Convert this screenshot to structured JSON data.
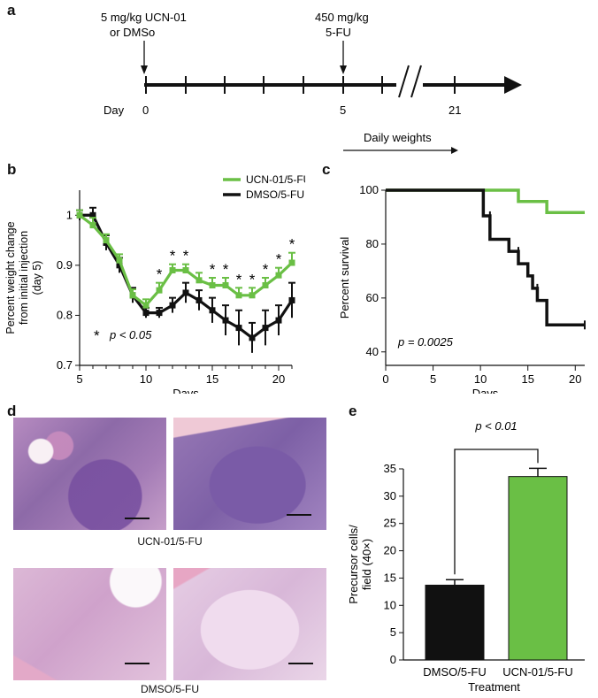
{
  "panel_a": {
    "letter": "a",
    "dose1_line1": "5 mg/kg UCN-01",
    "dose1_line2": "or DMSo",
    "dose2_line1": "450 mg/kg",
    "dose2_line2": "5-FU",
    "day_label": "Day",
    "ticks": [
      "0",
      "5",
      "21"
    ],
    "daily_label": "Daily weights"
  },
  "panel_b": {
    "letter": "b",
    "sig_star": "*",
    "sig_text": "p < 0.05"
  },
  "panel_c": {
    "letter": "c",
    "p_text": "p = 0.0025"
  },
  "panel_d": {
    "letter": "d",
    "label_top": "UCN-01/5-FU",
    "label_bottom": "DMSO/5-FU"
  },
  "panel_e": {
    "letter": "e",
    "p_text": "p < 0.01"
  },
  "colors": {
    "green": "#6abf45",
    "black": "#111111"
  },
  "chart_data": [
    {
      "type": "line",
      "xlabel": "Days",
      "ylabel": "Percent weight change from initial injection (day 5)",
      "xlim": [
        5,
        21
      ],
      "ylim": [
        0.7,
        1.05
      ],
      "xticks": [
        5,
        10,
        15,
        20
      ],
      "yticks": [
        0.7,
        0.8,
        0.9,
        1.0
      ],
      "x": [
        5,
        6,
        7,
        8,
        9,
        10,
        11,
        12,
        13,
        14,
        15,
        16,
        17,
        18,
        19,
        20,
        21
      ],
      "series": [
        {
          "name": "UCN-01/5-FU",
          "color": "#6abf45",
          "values": [
            1.0,
            0.98,
            0.95,
            0.91,
            0.84,
            0.82,
            0.85,
            0.89,
            0.89,
            0.87,
            0.86,
            0.86,
            0.84,
            0.84,
            0.86,
            0.88,
            0.905
          ],
          "errors": [
            0.01,
            0.015,
            0.012,
            0.012,
            0.012,
            0.012,
            0.015,
            0.012,
            0.012,
            0.015,
            0.015,
            0.015,
            0.015,
            0.015,
            0.015,
            0.015,
            0.02
          ]
        },
        {
          "name": "DMSO/5-FU",
          "color": "#111111",
          "values": [
            1.0,
            1.0,
            0.945,
            0.9,
            0.84,
            0.805,
            0.805,
            0.82,
            0.845,
            0.83,
            0.81,
            0.79,
            0.775,
            0.755,
            0.775,
            0.79,
            0.83
          ],
          "errors": [
            0.01,
            0.015,
            0.015,
            0.015,
            0.015,
            0.01,
            0.01,
            0.015,
            0.02,
            0.02,
            0.025,
            0.03,
            0.035,
            0.03,
            0.035,
            0.03,
            0.035
          ]
        }
      ],
      "significant_days": [
        11,
        12,
        13,
        15,
        16,
        17,
        18,
        19,
        20,
        21
      ],
      "legend": "top-right"
    },
    {
      "type": "line",
      "xlabel": "Days",
      "ylabel": "Percent survival",
      "xlim": [
        0,
        21
      ],
      "ylim": [
        35,
        100
      ],
      "xticks": [
        0,
        5,
        10,
        15,
        20
      ],
      "yticks": [
        40,
        60,
        80,
        100
      ],
      "series": [
        {
          "name": "UCN-01/5-FU",
          "color": "#6abf45",
          "steps": [
            [
              0,
              100
            ],
            [
              14,
              100
            ],
            [
              14,
              95.8
            ],
            [
              17,
              95.8
            ],
            [
              17,
              91.7
            ],
            [
              21,
              91.7
            ]
          ]
        },
        {
          "name": "DMSO/5-FU",
          "color": "#111111",
          "steps": [
            [
              0,
              100
            ],
            [
              10.3,
              100
            ],
            [
              10.3,
              90.5
            ],
            [
              11,
              90.5
            ],
            [
              11,
              81.8
            ],
            [
              13,
              81.8
            ],
            [
              13,
              77.3
            ],
            [
              14,
              77.3
            ],
            [
              14,
              72.7
            ],
            [
              15,
              72.7
            ],
            [
              15,
              68.2
            ],
            [
              15.5,
              68.2
            ],
            [
              15.5,
              63.6
            ],
            [
              16,
              63.6
            ],
            [
              16,
              59.1
            ],
            [
              17,
              59.1
            ],
            [
              17,
              50
            ],
            [
              21,
              50
            ]
          ],
          "censor_marks": [
            [
              11,
              90.5
            ],
            [
              14,
              77.3
            ],
            [
              16,
              63.6
            ],
            [
              21,
              50
            ]
          ]
        }
      ]
    },
    {
      "type": "bar",
      "xlabel": "Treatment",
      "ylabel": "Precursor cells/ field (40×)",
      "categories": [
        "DMSO/5-FU",
        "UCN-01/5-FU"
      ],
      "values": [
        13.7,
        33.6
      ],
      "errors": [
        1.0,
        1.5
      ],
      "colors": [
        "#111111",
        "#6abf45"
      ],
      "ylim": [
        0,
        35
      ],
      "yticks": [
        0,
        5,
        10,
        15,
        20,
        25,
        30,
        35
      ]
    }
  ]
}
